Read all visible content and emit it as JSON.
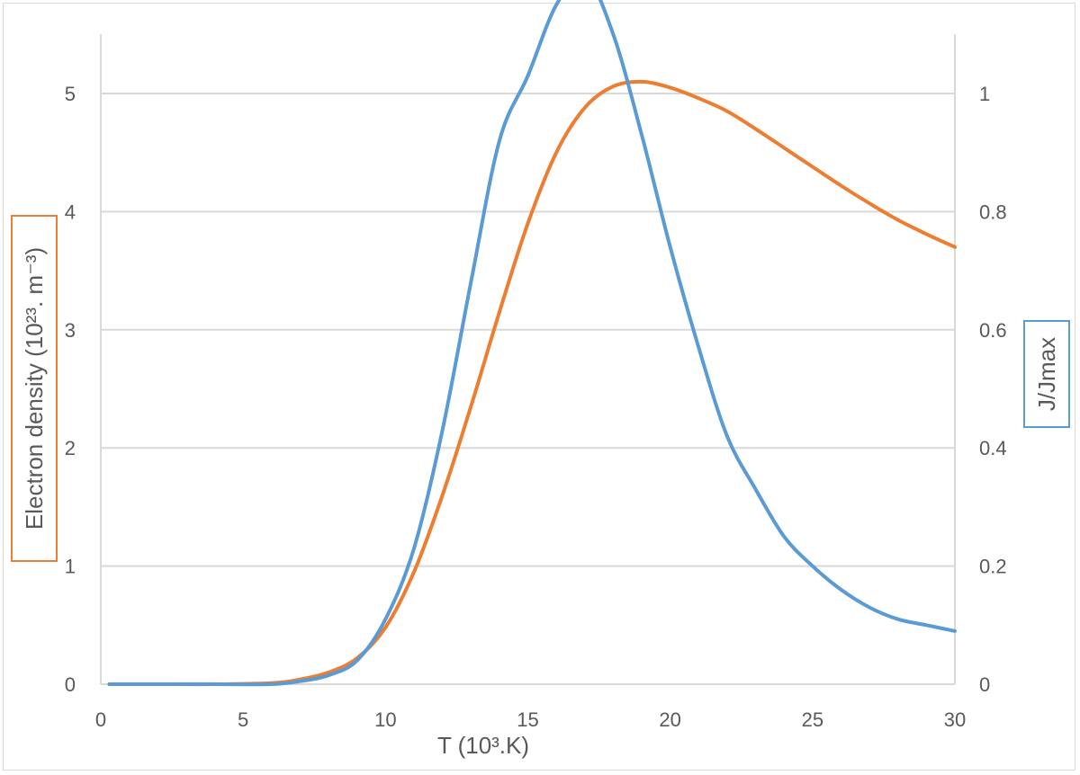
{
  "chart_data": {
    "type": "line",
    "x": [
      0.3,
      2,
      4,
      6,
      7,
      8,
      9,
      10,
      11,
      12,
      13,
      14,
      15,
      16,
      17,
      18,
      19,
      20,
      21,
      22,
      23,
      24,
      25,
      26,
      27,
      28,
      29,
      30
    ],
    "series": [
      {
        "axis": "left",
        "color": "#ED7D31",
        "values": [
          0,
          0,
          0,
          0.01,
          0.04,
          0.1,
          0.22,
          0.48,
          0.95,
          1.6,
          2.35,
          3.15,
          3.9,
          4.5,
          4.88,
          5.06,
          5.1,
          5.05,
          4.96,
          4.85,
          4.7,
          4.54,
          4.38,
          4.22,
          4.07,
          3.93,
          3.81,
          3.7
        ]
      },
      {
        "axis": "right",
        "color": "#5B9BD5",
        "values": [
          0,
          0,
          0,
          0,
          0.005,
          0.015,
          0.04,
          0.11,
          0.23,
          0.43,
          0.68,
          0.92,
          1.03,
          1.15,
          1.2,
          1.1,
          0.93,
          0.74,
          0.57,
          0.42,
          0.33,
          0.25,
          0.2,
          0.16,
          0.13,
          0.11,
          0.1,
          0.09
        ]
      }
    ],
    "xlabel": "T (10³.K)",
    "ylabel_left": "Electron density (10²³. m⁻³)",
    "ylabel_right": "J/Jmax",
    "xlim": [
      0,
      30
    ],
    "ylim_left": [
      0,
      5
    ],
    "ylim_right": [
      0,
      1
    ],
    "xticks": [
      "0",
      "5",
      "10",
      "15",
      "20",
      "25",
      "30"
    ],
    "yticks_left": [
      "0",
      "1",
      "2",
      "3",
      "4",
      "5"
    ],
    "yticks_right": [
      "0",
      "0.2",
      "0.4",
      "0.6",
      "0.8",
      "1"
    ],
    "grid": true
  }
}
